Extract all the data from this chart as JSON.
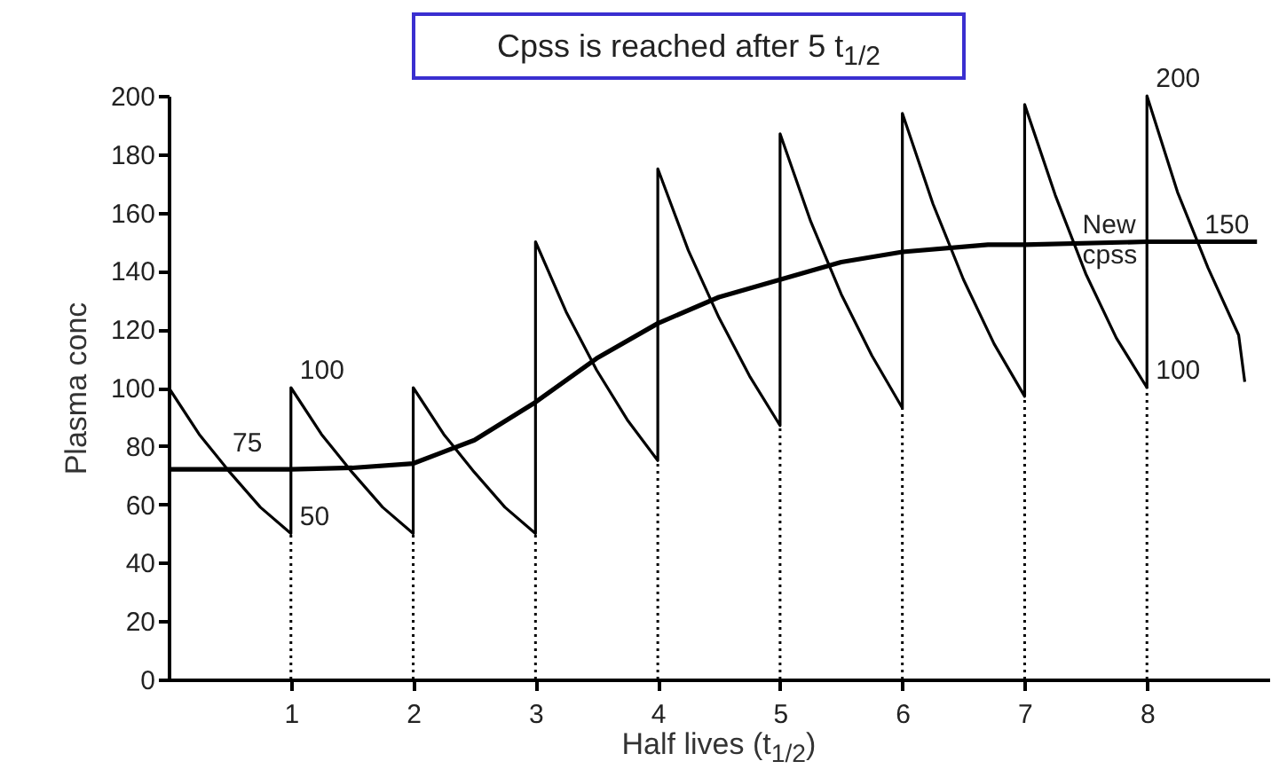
{
  "chart_data": {
    "type": "line",
    "title": "Cpss is reached after 5 t$_{1/2}$",
    "xlabel": "Half lives (t$_{1/2}$)",
    "ylabel": "Plasma conc",
    "xlim": [
      0,
      9
    ],
    "xticks": [
      1,
      2,
      3,
      4,
      5,
      6,
      7,
      8
    ],
    "ylim": [
      0,
      200
    ],
    "yticks": [
      0,
      20,
      40,
      60,
      80,
      100,
      120,
      140,
      160,
      180,
      200
    ],
    "grid": false,
    "line_style": "solid",
    "marker": "none",
    "series": [
      {
        "color": "#000000",
        "x": [
          0,
          0.25,
          0.5,
          0.75,
          1,
          1,
          1.25,
          1.5,
          1.75,
          2,
          2,
          2.25,
          2.5,
          2.75,
          3,
          3,
          3.25,
          3.5,
          3.75,
          4,
          4,
          4.25,
          4.5,
          4.75,
          5,
          5,
          5.25,
          5.5,
          5.75,
          6,
          6,
          6.25,
          6.5,
          6.75,
          7,
          7,
          7.25,
          7.5,
          7.75,
          8,
          8,
          8.25,
          8.5,
          8.75,
          8.8
        ],
        "values": [
          100,
          84,
          71,
          59,
          50,
          100,
          84,
          71,
          59,
          50,
          100,
          84,
          71,
          59,
          50,
          150,
          126,
          106,
          89,
          75,
          175,
          147,
          124,
          104,
          87,
          187,
          157,
          132,
          111,
          93,
          194,
          163,
          137,
          115,
          97,
          197,
          166,
          139,
          117,
          100,
          200,
          167,
          141,
          118,
          102
        ]
      },
      {
        "color": "#000000",
        "x": [
          0,
          1,
          1.5,
          2,
          2.5,
          3,
          3.5,
          4,
          4.5,
          5,
          5.5,
          6,
          6.7,
          7,
          8,
          8.9
        ],
        "values": [
          72,
          72,
          72.5,
          74,
          82,
          95,
          110,
          122,
          131,
          137,
          143,
          146.5,
          149,
          149,
          150,
          150
        ]
      }
    ],
    "ref_lines": [
      {
        "axis": "x",
        "value": 1,
        "line_style": "dotted",
        "color": "#000000"
      },
      {
        "axis": "x",
        "value": 2,
        "line_style": "dotted",
        "color": "#000000"
      },
      {
        "axis": "x",
        "value": 3,
        "line_style": "dotted",
        "color": "#000000"
      },
      {
        "axis": "x",
        "value": 4,
        "line_style": "dotted",
        "color": "#000000"
      },
      {
        "axis": "x",
        "value": 5,
        "line_style": "dotted",
        "color": "#000000"
      },
      {
        "axis": "x",
        "value": 6,
        "line_style": "dotted",
        "color": "#000000"
      },
      {
        "axis": "x",
        "value": 7,
        "line_style": "dotted",
        "color": "#000000"
      },
      {
        "axis": "x",
        "value": 8,
        "line_style": "dotted",
        "color": "#000000"
      }
    ],
    "annotations": [
      {
        "text": "75",
        "x": 0.45,
        "y": 75
      },
      {
        "text": "100",
        "x": 1,
        "y": 100
      },
      {
        "text": "50",
        "x": 1,
        "y": 50
      },
      {
        "text": "200",
        "x": 8,
        "y": 200
      },
      {
        "text": "New\ncpss",
        "x": 7.4,
        "y": 150
      },
      {
        "text": "150",
        "x": 8.4,
        "y": 150
      },
      {
        "text": "100",
        "x": 8,
        "y": 100
      }
    ]
  }
}
